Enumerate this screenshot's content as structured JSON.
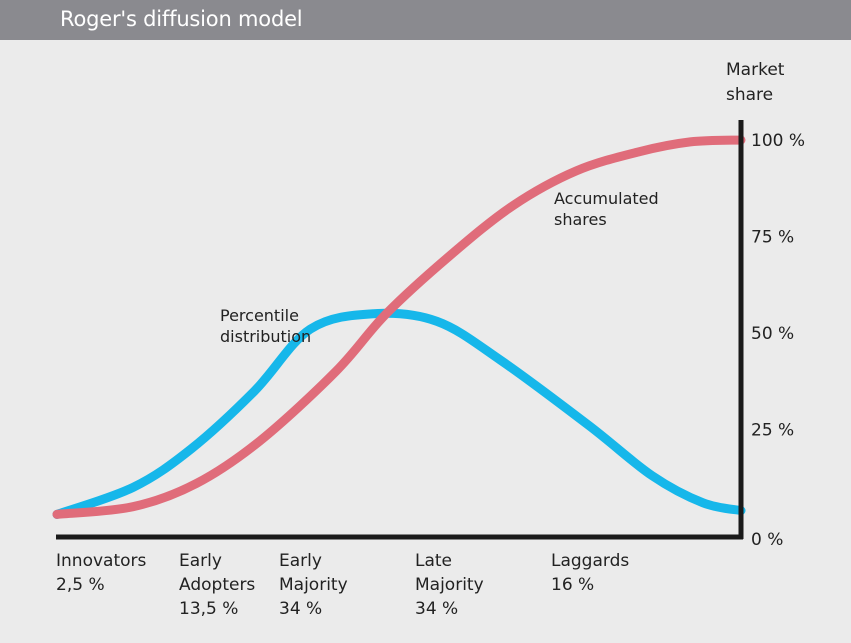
{
  "title": "Roger's diffusion model",
  "chart_data": {
    "type": "line",
    "ylabel": [
      "Market",
      "share"
    ],
    "ylim": [
      0,
      100
    ],
    "y_ticks": [
      {
        "value": 0,
        "label": "0 %"
      },
      {
        "value": 25,
        "label": "25 %"
      },
      {
        "value": 50,
        "label": "50 %"
      },
      {
        "value": 75,
        "label": "75 %"
      },
      {
        "value": 100,
        "label": "100 %"
      }
    ],
    "categories": [
      {
        "lines": [
          "Innovators",
          "2,5 %"
        ]
      },
      {
        "lines": [
          "Early",
          "Adopters",
          "13,5 %"
        ]
      },
      {
        "lines": [
          "Early",
          "Majority",
          "34 %"
        ]
      },
      {
        "lines": [
          "Late",
          "Majority",
          "34 %"
        ]
      },
      {
        "lines": [
          "Laggards",
          "16 %"
        ]
      }
    ],
    "series": [
      {
        "name": "Percentile distribution",
        "label_lines": [
          "Percentile",
          "distribution"
        ],
        "color": "#16b7ea",
        "points": [
          [
            0,
            3
          ],
          [
            30,
            10
          ],
          [
            53,
            20
          ],
          [
            78,
            35
          ],
          [
            100,
            51
          ],
          [
            125,
            55
          ],
          [
            150,
            53
          ],
          [
            175,
            43
          ],
          [
            210,
            26
          ],
          [
            235,
            13
          ],
          [
            255,
            6
          ],
          [
            270,
            4
          ]
        ]
      },
      {
        "name": "Accumulated shares",
        "label_lines": [
          "Accumulated",
          "shares"
        ],
        "color": "#e06c7a",
        "points": [
          [
            0,
            3
          ],
          [
            30,
            5
          ],
          [
            55,
            11
          ],
          [
            80,
            22
          ],
          [
            110,
            40
          ],
          [
            130,
            55
          ],
          [
            155,
            70
          ],
          [
            180,
            83
          ],
          [
            205,
            92
          ],
          [
            230,
            97
          ],
          [
            250,
            99.5
          ],
          [
            270,
            100
          ]
        ]
      }
    ]
  }
}
